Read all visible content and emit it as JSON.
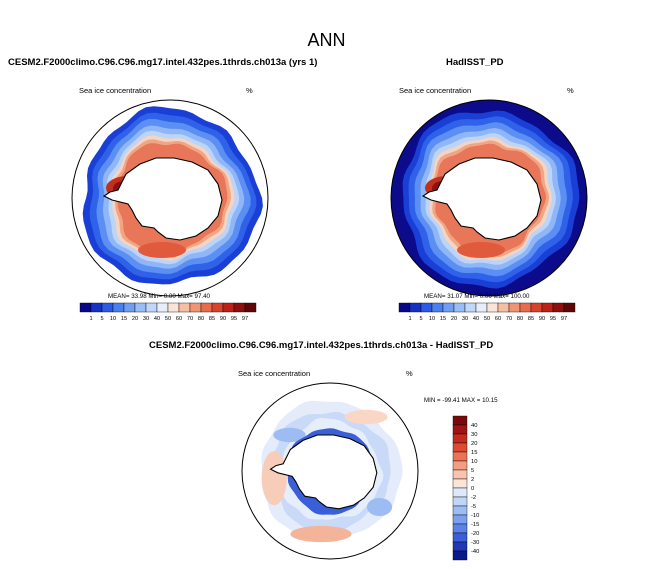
{
  "page_title": "ANN",
  "chart_data": [
    {
      "type": "heatmap",
      "title": "CESM2.F2000climo.C96.C96.mg17.intel.432pes.1thrds.ch013a (yrs 1)",
      "subtitle_left": "Sea ice concentration",
      "subtitle_right": "%",
      "stats_text": "MEAN=  33.98  Min=   0.00  Max=  97.40",
      "stats": {
        "mean": 33.98,
        "min": 0.0,
        "max": 97.4
      },
      "colorbar": {
        "levels": [
          "1",
          "5",
          "10",
          "15",
          "20",
          "30",
          "40",
          "50",
          "60",
          "70",
          "80",
          "85",
          "90",
          "95",
          "97"
        ],
        "colors": [
          "#08088a",
          "#1432c8",
          "#2b5be6",
          "#4a7ff0",
          "#6f9ef4",
          "#98bdf7",
          "#bfd7fa",
          "#e6eefb",
          "#fbe3d6",
          "#f6bfa4",
          "#f09574",
          "#e86c4c",
          "#d9432e",
          "#bd2118",
          "#8f0f0f",
          "#5e0707"
        ]
      }
    },
    {
      "type": "heatmap",
      "title": "HadISST_PD",
      "subtitle_left": "Sea ice concentration",
      "subtitle_right": "%",
      "stats_text": "MEAN=  31.07  Min=   0.00  Max=  100.00",
      "stats": {
        "mean": 31.07,
        "min": 0.0,
        "max": 100.0
      },
      "colorbar": {
        "levels": [
          "1",
          "5",
          "10",
          "15",
          "20",
          "30",
          "40",
          "50",
          "60",
          "70",
          "80",
          "85",
          "90",
          "95",
          "97"
        ],
        "colors": [
          "#08088a",
          "#1432c8",
          "#2b5be6",
          "#4a7ff0",
          "#6f9ef4",
          "#98bdf7",
          "#bfd7fa",
          "#e6eefb",
          "#fbe3d6",
          "#f6bfa4",
          "#f09574",
          "#e86c4c",
          "#d9432e",
          "#bd2118",
          "#8f0f0f",
          "#5e0707"
        ]
      }
    },
    {
      "type": "heatmap",
      "title": "CESM2.F2000climo.C96.C96.mg17.intel.432pes.1thrds.ch013a - HadISST_PD",
      "subtitle_left": "Sea ice concentration",
      "subtitle_right": "%",
      "stats_text": "MIN = -99.41 MAX =  10.15",
      "stats": {
        "min": -99.41,
        "max": 10.15
      },
      "colorbar": {
        "levels": [
          "40",
          "30",
          "20",
          "15",
          "10",
          "5",
          "2",
          "0",
          "-2",
          "-5",
          "-10",
          "-15",
          "-20",
          "-30",
          "-40"
        ],
        "colors": [
          "#7a0a0a",
          "#a11414",
          "#c52a1e",
          "#dd4a32",
          "#ec7456",
          "#f59d80",
          "#f9c4ad",
          "#fbe4d8",
          "#dde9fa",
          "#c0d6f8",
          "#9dbcf3",
          "#7da0ee",
          "#5b82e6",
          "#3b5fd8",
          "#2038b8",
          "#0b1a8a"
        ]
      }
    }
  ]
}
